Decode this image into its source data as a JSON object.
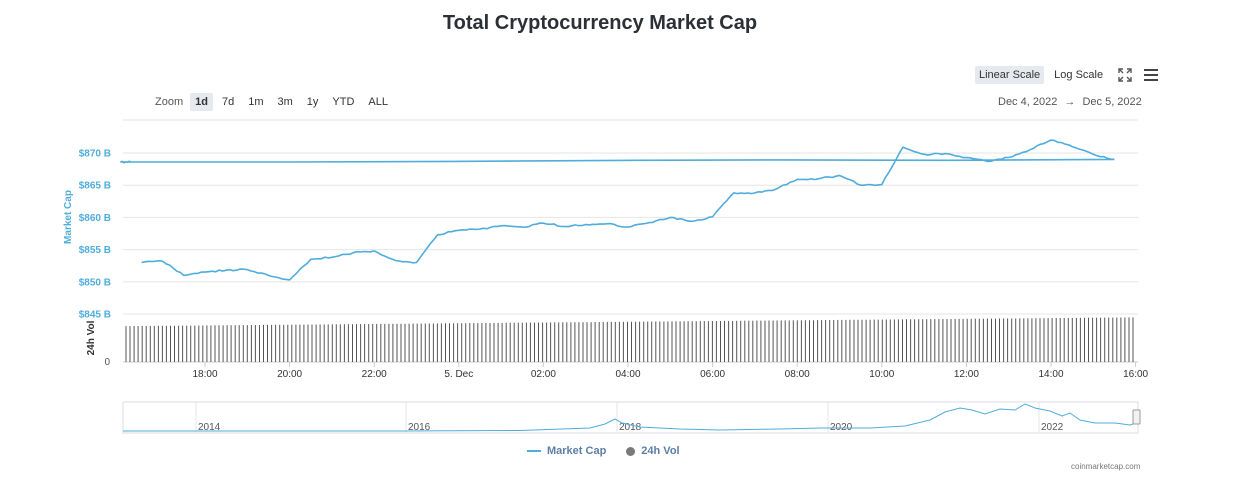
{
  "title": "Total Cryptocurrency Market Cap",
  "toolbar": {
    "linear_label": "Linear Scale",
    "log_label": "Log Scale",
    "zoom_label": "Zoom",
    "zoom_options": [
      "1d",
      "7d",
      "1m",
      "3m",
      "1y",
      "YTD",
      "ALL"
    ],
    "zoom_active": "1d",
    "date_from": "Dec 4, 2022",
    "date_arrow": "→",
    "date_to": "Dec 5, 2022"
  },
  "legend": {
    "market_cap": "Market Cap",
    "vol": "24h Vol"
  },
  "credits": "coinmarketcap.com",
  "colors": {
    "line": "#4eaddb",
    "bars": "#555555",
    "axis_blue": "#4eaddb"
  },
  "chart_data": [
    {
      "type": "line",
      "series": [
        {
          "name": "Market Cap",
          "x": [
            "16:30",
            "17:00",
            "17:30",
            "18:00",
            "18:30",
            "19:00",
            "19:30",
            "20:00",
            "20:30",
            "21:00",
            "21:30",
            "22:00",
            "22:30",
            "23:00",
            "23:30",
            "00:00",
            "00:30",
            "01:00",
            "01:30",
            "02:00",
            "02:30",
            "03:00",
            "03:30",
            "04:00",
            "04:30",
            "05:00",
            "05:30",
            "06:00",
            "06:30",
            "07:00",
            "07:30",
            "08:00",
            "08:30",
            "09:00",
            "09:30",
            "10:00",
            "10:30",
            "11:00",
            "11:30",
            "12:00",
            "12:30",
            "13:00",
            "13:30",
            "14:00",
            "14:30",
            "15:00",
            "15:30",
            "16:00",
            "16:15"
          ],
          "values": [
            853.0,
            853.2,
            851.0,
            851.5,
            851.8,
            851.9,
            851.0,
            850.3,
            853.5,
            853.8,
            854.5,
            854.8,
            853.3,
            853.0,
            857.3,
            858.0,
            858.2,
            858.7,
            858.5,
            859.1,
            858.6,
            858.9,
            859.0,
            858.5,
            859.2,
            860.0,
            859.4,
            860.1,
            863.8,
            863.8,
            864.4,
            865.9,
            866.0,
            866.5,
            865.0,
            865.1,
            870.9,
            869.8,
            869.9,
            869.3,
            868.7,
            869.3,
            870.5,
            872.0,
            871.0,
            869.8,
            869.0,
            868.6,
            868.6
          ],
          "unit": "B"
        }
      ],
      "y_axis_title": "Market Cap",
      "y_ticks": [
        "$845 B",
        "$850 B",
        "$855 B",
        "$860 B",
        "$865 B",
        "$870 B"
      ],
      "ylim": [
        845,
        871.5
      ],
      "x_ticks": [
        "18:00",
        "20:00",
        "22:00",
        "5. Dec",
        "02:00",
        "04:00",
        "06:00",
        "08:00",
        "10:00",
        "12:00",
        "14:00",
        "16:00"
      ],
      "grid": true
    },
    {
      "type": "bar",
      "series": [
        {
          "name": "24h Vol",
          "start_fraction": 0.78,
          "end_fraction": 0.97
        }
      ],
      "y_axis_title": "24h Vol",
      "y_ticks": [
        "0"
      ]
    },
    {
      "type": "area",
      "role": "navigator",
      "x_ticks": [
        "2014",
        "2016",
        "2018",
        "2020",
        "2022"
      ]
    }
  ]
}
